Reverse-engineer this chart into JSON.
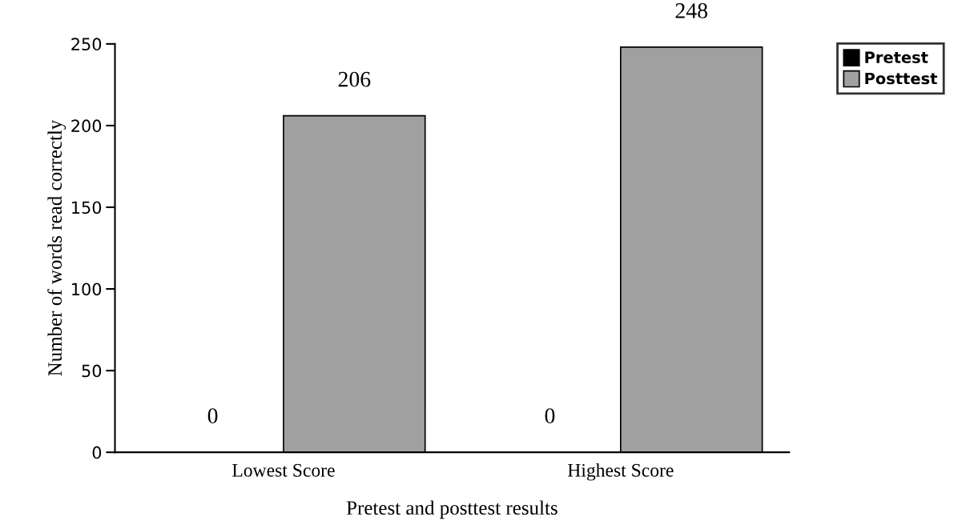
{
  "chart_data": {
    "type": "bar",
    "xlabel": "Pretest and posttest results",
    "ylabel": "Number of words read correctly",
    "categories": [
      "Lowest Score",
      "Highest Score"
    ],
    "series": [
      {
        "name": "Pretest",
        "color": "#000000",
        "values": [
          0,
          0
        ]
      },
      {
        "name": "Posttest",
        "color": "#a0a0a0",
        "values": [
          206,
          248
        ]
      }
    ],
    "ylim": [
      0,
      250
    ],
    "yticks": [
      0,
      50,
      100,
      150,
      200,
      250
    ],
    "data_labels": true,
    "legend": "top right",
    "grid": false
  }
}
